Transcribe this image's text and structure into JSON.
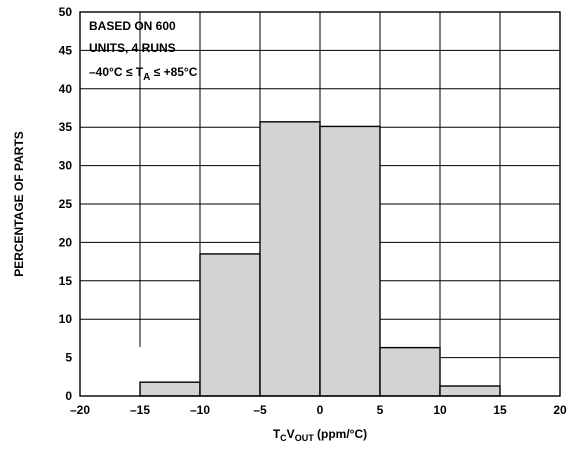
{
  "chart_data": {
    "type": "bar",
    "bins": [
      {
        "x0": -15,
        "x1": -10,
        "value": 1.8
      },
      {
        "x0": -10,
        "x1": -5,
        "value": 18.5
      },
      {
        "x0": -5,
        "x1": 0,
        "value": 35.7
      },
      {
        "x0": 0,
        "x1": 5,
        "value": 35.1
      },
      {
        "x0": 5,
        "x1": 10,
        "value": 6.3
      },
      {
        "x0": 10,
        "x1": 15,
        "value": 1.3
      }
    ],
    "xlim": [
      -20,
      20
    ],
    "ylim": [
      0,
      50
    ],
    "xticks": [
      -20,
      -15,
      -10,
      -5,
      0,
      5,
      10,
      15,
      20
    ],
    "yticks": [
      0,
      5,
      10,
      15,
      20,
      25,
      30,
      35,
      40,
      45,
      50
    ],
    "xtick_labels": [
      "–20",
      "–15",
      "–10",
      "–5",
      "0",
      "5",
      "10",
      "15",
      "20"
    ],
    "ytick_labels": [
      "0",
      "5",
      "10",
      "15",
      "20",
      "25",
      "30",
      "35",
      "40",
      "45",
      "50"
    ],
    "xlabel": {
      "main1": "T",
      "sub1": "C",
      "main2": "V",
      "sub2": "OUT",
      "rest": " (ppm/°C)"
    },
    "ylabel": "PERCENTAGE OF PARTS",
    "grid": true,
    "bar_color": "#d3d3d3",
    "annotation": {
      "line1": "BASED ON 600",
      "line2": "UNITS, 4 RUNS",
      "line3_pre": "–40°C ≤ T",
      "line3_sub": "A",
      "line3_post": " ≤ +85°C"
    }
  }
}
